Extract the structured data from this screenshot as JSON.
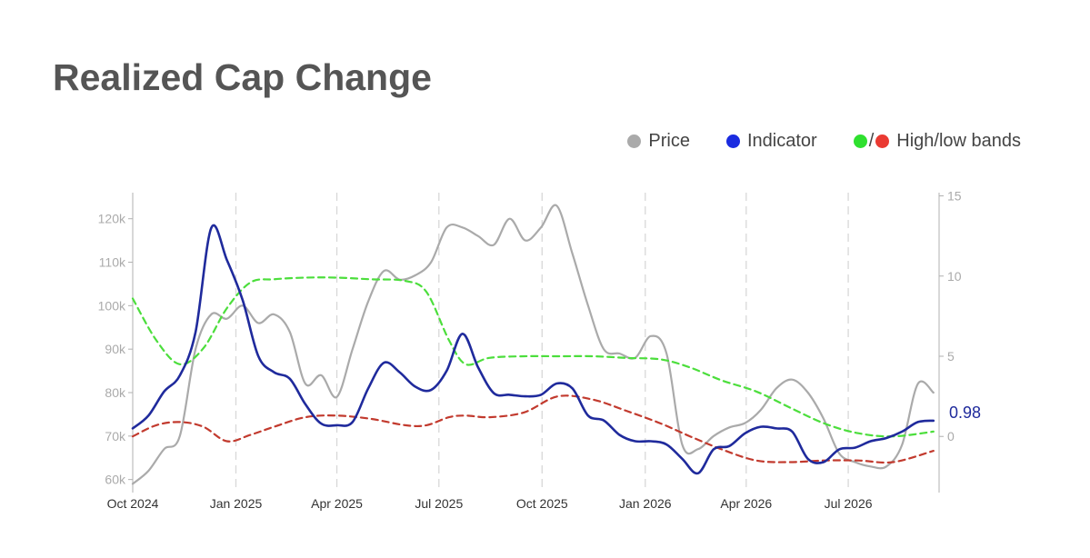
{
  "title": "Realized Cap Change",
  "legend": {
    "price_label": "Price",
    "indicator_label": "Indicator",
    "bands_label": "High/low bands",
    "bands_separator": "/"
  },
  "colors": {
    "price": "#aaaaaa",
    "indicator": "#1f2a9c",
    "high_band": "#4cde3c",
    "low_band": "#c23a2e",
    "legend_price_dot": "#aaaaaa",
    "legend_indicator_dot": "#1a2be0",
    "legend_high_dot": "#2fe02f",
    "legend_low_dot": "#ea3a32",
    "axis": "#b0b0b0",
    "grid": "#d8d8d8"
  },
  "chart_data": {
    "type": "line",
    "title": "Realized Cap Change",
    "x_tick_labels": [
      "Oct 2024",
      "Jan 2025",
      "Apr 2025",
      "Jul 2025",
      "Oct 2025",
      "Jan 2026",
      "Apr 2026",
      "Jul 2026"
    ],
    "x_tick_values": [
      "2024-10-01",
      "2025-01-01",
      "2025-04-01",
      "2025-07-01",
      "2025-10-01",
      "2026-01-01",
      "2026-04-01",
      "2026-07-01"
    ],
    "xlim": [
      "2024-10-01",
      "2026-09-20"
    ],
    "y_left": {
      "tick_labels": [
        "60k",
        "70k",
        "80k",
        "90k",
        "100k",
        "110k",
        "120k"
      ],
      "ticks": [
        60000,
        70000,
        80000,
        90000,
        100000,
        110000,
        120000
      ],
      "range": [
        57000,
        126000
      ]
    },
    "y_right": {
      "tick_labels": [
        "0",
        "5",
        "10",
        "15"
      ],
      "ticks": [
        0,
        5,
        10,
        15
      ],
      "range": [
        -3.5,
        15.2
      ]
    },
    "grid": "vertical dashed at x ticks",
    "last_value_label": "0.98",
    "series": [
      {
        "name": "Price",
        "axis": "left",
        "x": [
          "2024-10-01",
          "2024-10-15",
          "2024-10-29",
          "2024-11-12",
          "2024-11-26",
          "2024-12-10",
          "2024-12-24",
          "2025-01-07",
          "2025-01-21",
          "2025-02-04",
          "2025-02-18",
          "2025-03-04",
          "2025-03-18",
          "2025-04-01",
          "2025-04-15",
          "2025-04-29",
          "2025-05-13",
          "2025-05-27",
          "2025-06-10",
          "2025-06-24",
          "2025-07-08",
          "2025-07-22",
          "2025-08-05",
          "2025-08-19",
          "2025-09-02",
          "2025-09-16",
          "2025-09-30",
          "2025-10-14",
          "2025-10-28",
          "2025-11-11",
          "2025-11-25",
          "2025-12-09",
          "2025-12-23",
          "2026-01-06",
          "2026-01-20",
          "2026-02-03",
          "2026-02-17",
          "2026-03-03",
          "2026-03-17",
          "2026-03-31",
          "2026-04-14",
          "2026-04-28",
          "2026-05-12",
          "2026-05-26",
          "2026-06-09",
          "2026-06-23",
          "2026-07-07",
          "2026-07-21",
          "2026-08-04",
          "2026-08-18",
          "2026-09-01",
          "2026-09-15"
        ],
        "values": [
          59000,
          62000,
          67000,
          70000,
          90000,
          98000,
          97000,
          100000,
          96000,
          98000,
          94000,
          82000,
          84000,
          79000,
          90000,
          101000,
          108000,
          106000,
          107000,
          110000,
          118000,
          118000,
          116000,
          114000,
          120000,
          115000,
          118000,
          123000,
          112000,
          100000,
          90000,
          89000,
          88000,
          93000,
          89000,
          68000,
          67000,
          70000,
          72000,
          73000,
          76000,
          81000,
          83000,
          80000,
          74000,
          66000,
          64000,
          63000,
          63000,
          68000,
          82000,
          80000
        ]
      },
      {
        "name": "Indicator",
        "axis": "right",
        "x": [
          "2024-10-01",
          "2024-10-15",
          "2024-10-29",
          "2024-11-12",
          "2024-11-26",
          "2024-12-10",
          "2024-12-24",
          "2025-01-07",
          "2025-01-21",
          "2025-02-04",
          "2025-02-18",
          "2025-03-04",
          "2025-03-18",
          "2025-04-01",
          "2025-04-15",
          "2025-04-29",
          "2025-05-13",
          "2025-05-27",
          "2025-06-10",
          "2025-06-24",
          "2025-07-08",
          "2025-07-22",
          "2025-08-05",
          "2025-08-19",
          "2025-09-02",
          "2025-09-16",
          "2025-09-30",
          "2025-10-14",
          "2025-10-28",
          "2025-11-11",
          "2025-11-25",
          "2025-12-09",
          "2025-12-23",
          "2026-01-06",
          "2026-01-20",
          "2026-02-03",
          "2026-02-17",
          "2026-03-03",
          "2026-03-17",
          "2026-03-31",
          "2026-04-14",
          "2026-04-28",
          "2026-05-12",
          "2026-05-26",
          "2026-06-09",
          "2026-06-23",
          "2026-07-07",
          "2026-07-21",
          "2026-08-04",
          "2026-08-18",
          "2026-09-01",
          "2026-09-15"
        ],
        "values": [
          0.5,
          1.3,
          2.8,
          3.8,
          6.5,
          13.0,
          11.0,
          8.5,
          5.0,
          4.0,
          3.6,
          2.0,
          0.8,
          0.7,
          0.9,
          3.0,
          4.6,
          4.0,
          3.1,
          2.9,
          4.1,
          6.4,
          4.3,
          2.7,
          2.6,
          2.5,
          2.6,
          3.3,
          3.0,
          1.3,
          1.0,
          0.1,
          -0.3,
          -0.3,
          -0.5,
          -1.4,
          -2.3,
          -0.8,
          -0.6,
          0.2,
          0.6,
          0.5,
          0.3,
          -1.4,
          -1.6,
          -0.8,
          -0.7,
          -0.3,
          -0.1,
          0.3,
          0.9,
          0.98
        ]
      },
      {
        "name": "High band",
        "axis": "right",
        "x": [
          "2024-10-01",
          "2024-10-22",
          "2024-11-12",
          "2024-12-03",
          "2024-12-24",
          "2025-01-14",
          "2025-02-04",
          "2025-03-04",
          "2025-04-01",
          "2025-05-01",
          "2025-06-01",
          "2025-06-20",
          "2025-07-10",
          "2025-07-25",
          "2025-08-15",
          "2025-09-15",
          "2025-10-15",
          "2025-11-15",
          "2025-12-15",
          "2026-01-15",
          "2026-02-10",
          "2026-03-10",
          "2026-04-10",
          "2026-05-10",
          "2026-06-10",
          "2026-07-10",
          "2026-08-10",
          "2026-09-15"
        ],
        "values": [
          8.6,
          6.0,
          4.5,
          5.5,
          8.0,
          9.6,
          9.8,
          9.9,
          9.9,
          9.8,
          9.7,
          9.0,
          6.0,
          4.5,
          4.9,
          5.0,
          5.0,
          5.0,
          4.9,
          4.8,
          4.3,
          3.5,
          2.8,
          1.8,
          0.8,
          0.2,
          0.0,
          0.3
        ]
      },
      {
        "name": "Low band",
        "axis": "right",
        "x": [
          "2024-10-01",
          "2024-10-22",
          "2024-11-12",
          "2024-12-03",
          "2024-12-24",
          "2025-01-14",
          "2025-02-04",
          "2025-03-04",
          "2025-04-01",
          "2025-05-01",
          "2025-06-01",
          "2025-06-20",
          "2025-07-10",
          "2025-07-25",
          "2025-08-15",
          "2025-09-15",
          "2025-10-15",
          "2025-11-15",
          "2025-12-15",
          "2026-01-15",
          "2026-02-10",
          "2026-03-10",
          "2026-04-10",
          "2026-05-10",
          "2026-06-10",
          "2026-07-10",
          "2026-08-10",
          "2026-09-15"
        ],
        "values": [
          0.0,
          0.7,
          0.9,
          0.6,
          -0.3,
          0.1,
          0.6,
          1.2,
          1.3,
          1.1,
          0.7,
          0.7,
          1.2,
          1.3,
          1.2,
          1.5,
          2.5,
          2.3,
          1.6,
          0.8,
          0.0,
          -0.8,
          -1.5,
          -1.6,
          -1.5,
          -1.5,
          -1.6,
          -0.9
        ]
      }
    ]
  }
}
